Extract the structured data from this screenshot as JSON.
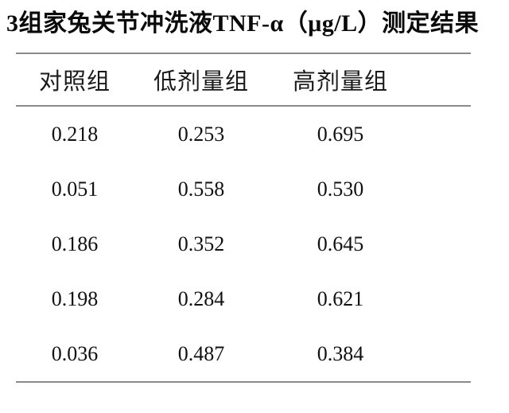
{
  "title": "3组家兔关节冲洗液TNF-α（μg/L）测定结果",
  "table": {
    "columns": [
      "对照组",
      "低剂量组",
      "高剂量组"
    ],
    "rows": [
      [
        "0.218",
        "0.253",
        "0.695"
      ],
      [
        "0.051",
        "0.558",
        "0.530"
      ],
      [
        "0.186",
        "0.352",
        "0.645"
      ],
      [
        "0.198",
        "0.284",
        "0.621"
      ],
      [
        "0.036",
        "0.487",
        "0.384"
      ]
    ]
  },
  "chart_data": {
    "type": "table",
    "title": "3组家兔关节冲洗液TNF-α（μg/L）测定结果",
    "categories": [
      "对照组",
      "低剂量组",
      "高剂量组"
    ],
    "series": [
      {
        "name": "对照组",
        "values": [
          0.218,
          0.051,
          0.186,
          0.198,
          0.036
        ]
      },
      {
        "name": "低剂量组",
        "values": [
          0.253,
          0.558,
          0.352,
          0.284,
          0.487
        ]
      },
      {
        "name": "高剂量组",
        "values": [
          0.695,
          0.53,
          0.645,
          0.621,
          0.384
        ]
      }
    ]
  },
  "colors": {
    "rule_gray": "#8a8a8a",
    "text_black": "#111111"
  }
}
